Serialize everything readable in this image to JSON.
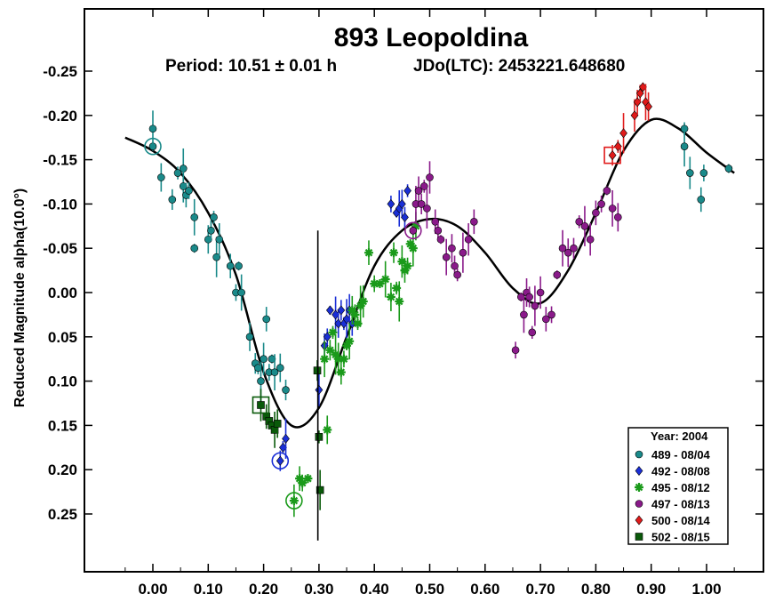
{
  "chart_data": {
    "type": "scatter",
    "title": "893 Leopoldina",
    "subtitle_period": "Period: 10.51 ± 0.01 h",
    "subtitle_epoch": "JDo(LTC): 2453221.648680",
    "xlabel": "",
    "ylabel": "Reduced Magnitude alpha(10.0°)",
    "xlim": [
      -0.125,
      1.11
    ],
    "ylim": [
      0.325,
      -0.325
    ],
    "y_inverted": true,
    "x_ticks": [
      "0.00",
      "0.10",
      "0.20",
      "0.30",
      "0.40",
      "0.50",
      "0.60",
      "0.70",
      "0.80",
      "0.90",
      "1.00"
    ],
    "y_ticks": [
      "-0.25",
      "-0.20",
      "-0.15",
      "-0.10",
      "-0.05",
      "0.00",
      "0.05",
      "0.10",
      "0.15",
      "0.20",
      "0.25"
    ],
    "legend": {
      "title": "Year: 2004",
      "placement": "bottom-right",
      "entries": [
        {
          "label": "489 - 08/04",
          "color": "#1a8a8a",
          "marker": "circle"
        },
        {
          "label": "492 - 08/08",
          "color": "#1a2fd6",
          "marker": "diamond"
        },
        {
          "label": "495 - 08/12",
          "color": "#1a9a1a",
          "marker": "asterisk"
        },
        {
          "label": "497 - 08/13",
          "color": "#8a1a8a",
          "marker": "circle"
        },
        {
          "label": "500 - 08/14",
          "color": "#e01a1a",
          "marker": "diamond"
        },
        {
          "label": "502 - 08/15",
          "color": "#0a5a0a",
          "marker": "square"
        }
      ]
    },
    "fit_curve": {
      "x": [
        -0.05,
        0.0,
        0.05,
        0.1,
        0.15,
        0.2,
        0.25,
        0.3,
        0.35,
        0.4,
        0.45,
        0.5,
        0.55,
        0.6,
        0.65,
        0.7,
        0.75,
        0.8,
        0.85,
        0.9,
        0.95,
        1.0,
        1.05
      ],
      "y": [
        -0.175,
        -0.16,
        -0.135,
        -0.09,
        -0.02,
        0.09,
        0.15,
        0.13,
        0.05,
        -0.03,
        -0.07,
        -0.083,
        -0.075,
        -0.045,
        -0.005,
        0.012,
        -0.025,
        -0.09,
        -0.16,
        -0.195,
        -0.185,
        -0.158,
        -0.135
      ]
    },
    "series": [
      {
        "name": "489 - 08/04",
        "points": [
          [
            0.0,
            -0.165
          ],
          [
            0.0,
            -0.185
          ],
          [
            0.015,
            -0.13
          ],
          [
            0.035,
            -0.105
          ],
          [
            0.045,
            -0.135
          ],
          [
            0.055,
            -0.14
          ],
          [
            0.055,
            -0.12
          ],
          [
            0.06,
            -0.11
          ],
          [
            0.065,
            -0.115
          ],
          [
            0.075,
            -0.05
          ],
          [
            0.075,
            -0.085
          ],
          [
            0.1,
            -0.06
          ],
          [
            0.105,
            -0.07
          ],
          [
            0.11,
            -0.085
          ],
          [
            0.115,
            -0.04
          ],
          [
            0.12,
            -0.06
          ],
          [
            0.14,
            -0.03
          ],
          [
            0.15,
            0.0
          ],
          [
            0.155,
            -0.03
          ],
          [
            0.16,
            0.0
          ],
          [
            0.175,
            0.05
          ],
          [
            0.185,
            0.08
          ],
          [
            0.19,
            0.085
          ],
          [
            0.195,
            0.1
          ],
          [
            0.2,
            0.075
          ],
          [
            0.205,
            0.03
          ],
          [
            0.21,
            0.09
          ],
          [
            0.215,
            0.075
          ],
          [
            0.22,
            0.09
          ],
          [
            0.23,
            0.085
          ],
          [
            0.24,
            0.11
          ],
          [
            0.96,
            -0.185
          ],
          [
            0.96,
            -0.165
          ],
          [
            0.97,
            -0.135
          ],
          [
            0.99,
            -0.105
          ],
          [
            0.995,
            -0.135
          ],
          [
            1.04,
            -0.14
          ]
        ]
      },
      {
        "name": "492 - 08/08",
        "points": [
          [
            0.23,
            0.19
          ],
          [
            0.235,
            0.175
          ],
          [
            0.24,
            0.165
          ],
          [
            0.3,
            0.11
          ],
          [
            0.31,
            0.06
          ],
          [
            0.315,
            0.05
          ],
          [
            0.32,
            0.02
          ],
          [
            0.33,
            0.025
          ],
          [
            0.335,
            0.035
          ],
          [
            0.34,
            0.02
          ],
          [
            0.345,
            0.035
          ],
          [
            0.35,
            0.03
          ],
          [
            0.355,
            0.02
          ],
          [
            0.36,
            0.035
          ],
          [
            0.43,
            -0.1
          ],
          [
            0.44,
            -0.09
          ],
          [
            0.445,
            -0.095
          ],
          [
            0.45,
            -0.1
          ],
          [
            0.455,
            -0.085
          ],
          [
            0.46,
            -0.115
          ]
        ]
      },
      {
        "name": "495 - 08/12",
        "points": [
          [
            0.255,
            0.235
          ],
          [
            0.265,
            0.21
          ],
          [
            0.27,
            0.215
          ],
          [
            0.28,
            0.21
          ],
          [
            0.31,
            0.075
          ],
          [
            0.315,
            0.155
          ],
          [
            0.32,
            0.065
          ],
          [
            0.325,
            0.045
          ],
          [
            0.33,
            0.07
          ],
          [
            0.335,
            0.075
          ],
          [
            0.34,
            0.09
          ],
          [
            0.345,
            0.075
          ],
          [
            0.35,
            0.06
          ],
          [
            0.355,
            0.055
          ],
          [
            0.36,
            0.02
          ],
          [
            0.365,
            0.025
          ],
          [
            0.37,
            0.035
          ],
          [
            0.375,
            0.015
          ],
          [
            0.38,
            0.01
          ],
          [
            0.39,
            -0.045
          ],
          [
            0.4,
            -0.01
          ],
          [
            0.41,
            -0.01
          ],
          [
            0.42,
            -0.015
          ],
          [
            0.43,
            0.005
          ],
          [
            0.435,
            -0.045
          ],
          [
            0.44,
            -0.005
          ],
          [
            0.445,
            0.01
          ],
          [
            0.45,
            -0.035
          ],
          [
            0.455,
            -0.025
          ],
          [
            0.46,
            -0.03
          ],
          [
            0.465,
            -0.055
          ],
          [
            0.47,
            -0.05
          ],
          [
            0.475,
            -0.075
          ]
        ]
      },
      {
        "name": "497 - 08/13",
        "points": [
          [
            0.47,
            -0.07
          ],
          [
            0.475,
            -0.1
          ],
          [
            0.48,
            -0.115
          ],
          [
            0.485,
            -0.1
          ],
          [
            0.49,
            -0.12
          ],
          [
            0.495,
            -0.095
          ],
          [
            0.5,
            -0.13
          ],
          [
            0.51,
            -0.08
          ],
          [
            0.515,
            -0.07
          ],
          [
            0.52,
            -0.06
          ],
          [
            0.53,
            -0.04
          ],
          [
            0.54,
            -0.05
          ],
          [
            0.545,
            -0.03
          ],
          [
            0.55,
            -0.02
          ],
          [
            0.56,
            -0.045
          ],
          [
            0.57,
            -0.06
          ],
          [
            0.58,
            -0.08
          ],
          [
            0.655,
            0.065
          ],
          [
            0.665,
            0.005
          ],
          [
            0.67,
            0.025
          ],
          [
            0.675,
            0.0
          ],
          [
            0.68,
            0.005
          ],
          [
            0.685,
            0.045
          ],
          [
            0.69,
            0.015
          ],
          [
            0.7,
            0.0
          ],
          [
            0.71,
            0.03
          ],
          [
            0.72,
            0.025
          ],
          [
            0.73,
            -0.02
          ],
          [
            0.74,
            -0.05
          ],
          [
            0.75,
            -0.045
          ],
          [
            0.76,
            -0.05
          ],
          [
            0.77,
            -0.08
          ],
          [
            0.78,
            -0.075
          ],
          [
            0.79,
            -0.06
          ],
          [
            0.8,
            -0.09
          ],
          [
            0.81,
            -0.1
          ],
          [
            0.82,
            -0.115
          ],
          [
            0.83,
            -0.095
          ],
          [
            0.84,
            -0.085
          ]
        ]
      },
      {
        "name": "500 - 08/14",
        "points": [
          [
            0.83,
            -0.155
          ],
          [
            0.84,
            -0.165
          ],
          [
            0.85,
            -0.18
          ],
          [
            0.87,
            -0.2
          ],
          [
            0.875,
            -0.215
          ],
          [
            0.88,
            -0.225
          ],
          [
            0.885,
            -0.232
          ],
          [
            0.89,
            -0.215
          ],
          [
            0.895,
            -0.21
          ]
        ]
      },
      {
        "name": "502 - 08/15",
        "points": [
          [
            0.195,
            0.127
          ],
          [
            0.205,
            0.14
          ],
          [
            0.21,
            0.145
          ],
          [
            0.215,
            0.15
          ],
          [
            0.22,
            0.155
          ],
          [
            0.225,
            0.148
          ],
          [
            0.297,
            0.088
          ],
          [
            0.3,
            0.163
          ],
          [
            0.302,
            0.223
          ]
        ]
      }
    ]
  }
}
